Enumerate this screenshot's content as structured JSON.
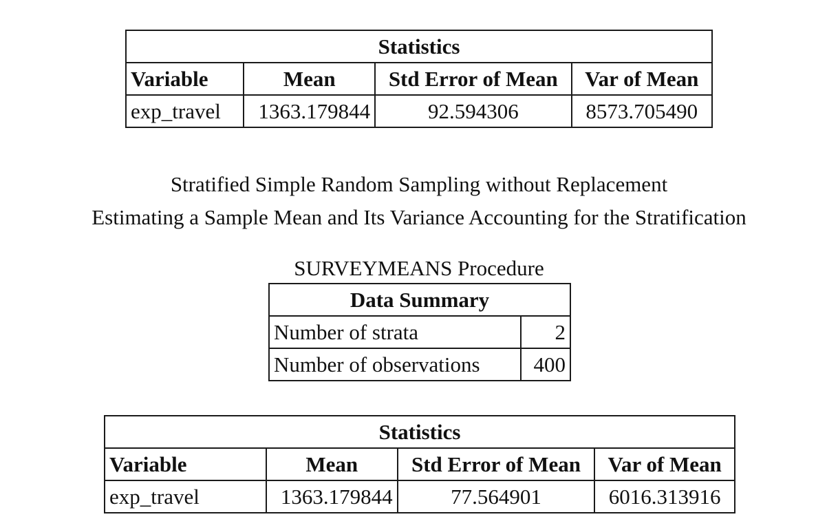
{
  "stats_table_1": {
    "title": "Statistics",
    "headers": [
      "Variable",
      "Mean",
      "Std Error of Mean",
      "Var of Mean"
    ],
    "row": [
      "exp_travel",
      "1363.179844",
      "92.594306",
      "8573.705490"
    ]
  },
  "titles": {
    "line1": "Stratified Simple Random Sampling without Replacement",
    "line2": "Estimating a Sample Mean and Its Variance Accounting for the Stratification",
    "procedure": "SURVEYMEANS Procedure"
  },
  "data_summary": {
    "title": "Data Summary",
    "rows": [
      {
        "label": "Number of strata",
        "value": "2"
      },
      {
        "label": "Number of observations",
        "value": "400"
      }
    ]
  },
  "stats_table_2": {
    "title": "Statistics",
    "headers": [
      "Variable",
      "Mean",
      "Std Error of Mean",
      "Var of Mean"
    ],
    "row": [
      "exp_travel",
      "1363.179844",
      "77.564901",
      "6016.313916"
    ]
  }
}
